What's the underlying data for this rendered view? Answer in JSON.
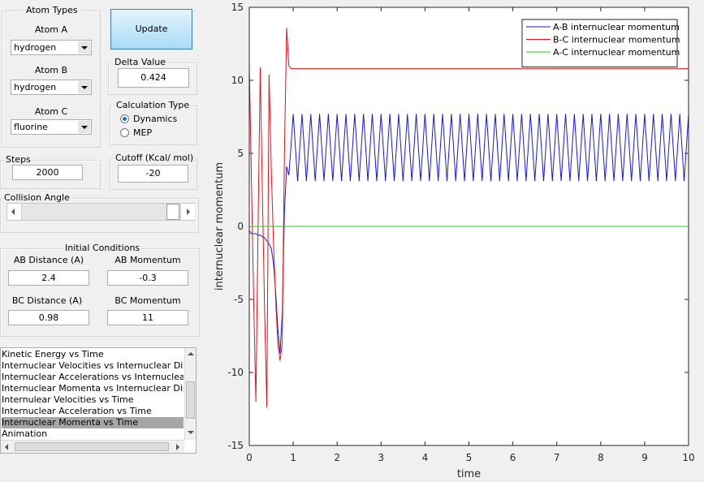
{
  "controls": {
    "atom_types": {
      "title": "Atom Types",
      "a_label": "Atom A",
      "a_value": "hydrogen",
      "b_label": "Atom B",
      "b_value": "hydrogen",
      "c_label": "Atom C",
      "c_value": "fluorine"
    },
    "update": "Update",
    "delta": {
      "title": "Delta Value",
      "value": "0.424"
    },
    "calc": {
      "title": "Calculation Type",
      "options": [
        "Dynamics",
        "MEP"
      ],
      "selected": 0
    },
    "steps": {
      "title": "Steps",
      "value": "2000"
    },
    "cutoff": {
      "title": "Cutoff (Kcal/ mol)",
      "value": "-20"
    },
    "collision": {
      "title": "Collision Angle"
    },
    "initial": {
      "title": "Initial Conditions",
      "ab_distance_label": "AB Distance (A)",
      "ab_distance": "2.4",
      "ab_momentum_label": "AB Momentum",
      "ab_momentum": "-0.3",
      "bc_distance_label": "BC Distance (A)",
      "bc_distance": "0.98",
      "bc_momentum_label": "BC Momentum",
      "bc_momentum": "11"
    },
    "list": {
      "items": [
        "Kinetic Energy vs Time",
        "Internuclear Velocities vs Internuclear Distance",
        "Internuclear Accelerations vs Internuclear Dista",
        "Internuclear Momenta vs Internuclear Distance",
        "Internulear Velocities vs Time",
        "Internuclear Acceleration vs Time",
        "Internuclear Momenta vs Time",
        "Animation"
      ],
      "selected": 6
    }
  },
  "chart_data": {
    "type": "line",
    "xlabel": "time",
    "ylabel": "internuclear momentum",
    "xlim": [
      0,
      10
    ],
    "xticks": [
      0,
      1,
      2,
      3,
      4,
      5,
      6,
      7,
      8,
      9,
      10
    ],
    "ylim": [
      -15,
      15
    ],
    "yticks": [
      -15,
      -10,
      -5,
      0,
      5,
      10,
      15
    ],
    "legend": "northeast",
    "grid": false,
    "x": [
      0,
      0.05,
      0.1,
      0.15,
      0.2,
      0.25,
      0.3,
      0.35,
      0.4,
      0.45,
      0.5,
      0.55,
      0.6,
      0.65,
      0.7,
      0.75,
      0.8,
      0.85,
      0.9,
      0.95,
      1,
      1.1,
      1.2,
      1.3,
      1.4,
      1.5,
      1.6,
      1.7,
      1.8,
      1.9,
      2,
      2.1,
      2.2,
      2.3,
      2.4,
      2.5,
      2.6,
      2.7,
      2.8,
      2.9,
      3,
      3.1,
      3.2,
      3.3,
      3.4,
      3.5,
      3.6,
      3.7,
      3.8,
      3.9,
      4,
      4.1,
      4.2,
      4.3,
      4.4,
      4.5,
      4.6,
      4.7,
      4.8,
      4.9,
      5,
      5.1,
      5.2,
      5.3,
      5.4,
      5.5,
      5.6,
      5.7,
      5.8,
      5.9,
      6,
      6.1,
      6.2,
      6.3,
      6.4,
      6.5,
      6.6,
      6.7,
      6.8,
      6.9,
      7,
      7.1,
      7.2,
      7.3,
      7.4,
      7.5,
      7.6,
      7.7,
      7.8,
      7.9,
      8,
      8.1,
      8.2,
      8.3,
      8.4,
      8.5,
      8.6,
      8.7,
      8.8,
      8.9,
      9,
      9.1,
      9.2,
      9.3,
      9.4,
      9.5,
      9.6,
      9.7,
      9.8,
      9.9,
      10
    ],
    "series": [
      {
        "name": "A-B internuclear momentum",
        "color": "#1a1acc",
        "values": [
          -0.3,
          -0.5,
          -0.5,
          -0.5,
          -0.6,
          -0.6,
          -0.7,
          -0.8,
          -1,
          -1.2,
          -1.5,
          -2.5,
          -4.5,
          -7,
          -8.7,
          -6,
          1,
          4.1,
          3.5,
          5.5,
          7.7,
          3.1,
          7.7,
          3.1,
          7.7,
          3.1,
          7.7,
          3.1,
          7.7,
          3.1,
          7.7,
          3.1,
          7.7,
          3.1,
          7.7,
          3.1,
          7.7,
          3.1,
          7.7,
          3.1,
          7.7,
          3.1,
          7.7,
          3.1,
          7.7,
          3.1,
          7.7,
          3.1,
          7.7,
          3.1,
          7.7,
          3.1,
          7.7,
          3.1,
          7.7,
          3.1,
          7.7,
          3.1,
          7.7,
          3.1,
          7.7,
          3.1,
          7.7,
          3.1,
          7.7,
          3.1,
          7.7,
          3.1,
          7.7,
          3.1,
          7.7,
          3.1,
          7.7,
          3.1,
          7.7,
          3.1,
          7.7,
          3.1,
          7.7,
          3.1,
          7.7,
          3.1,
          7.7,
          3.1,
          7.7,
          3.1,
          7.7,
          3.1,
          7.7,
          3.1,
          7.7,
          3.1,
          7.7,
          3.1,
          7.7,
          3.1,
          7.7,
          3.1,
          7.7,
          3.1,
          7.7,
          3.1,
          7.7,
          3.1,
          7.7,
          3.1,
          7.7,
          3.1,
          7.7,
          3.1,
          7.7
        ]
      },
      {
        "name": "B-C internuclear momentum",
        "color": "#e0141c",
        "values": [
          11,
          3,
          -5,
          -12,
          0,
          10.9,
          2,
          -6,
          -12.4,
          10.4,
          4,
          -1,
          -5,
          -8,
          -9.2,
          -8,
          5,
          13.6,
          11,
          10.8,
          10.8,
          10.8,
          10.8,
          10.8,
          10.8,
          10.8,
          10.8,
          10.8,
          10.8,
          10.8,
          10.8,
          10.8,
          10.8,
          10.8,
          10.8,
          10.8,
          10.8,
          10.8,
          10.8,
          10.8,
          10.8,
          10.8,
          10.8,
          10.8,
          10.8,
          10.8,
          10.8,
          10.8,
          10.8,
          10.8,
          10.8,
          10.8,
          10.8,
          10.8,
          10.8,
          10.8,
          10.8,
          10.8,
          10.8,
          10.8,
          10.8,
          10.8,
          10.8,
          10.8,
          10.8,
          10.8,
          10.8,
          10.8,
          10.8,
          10.8,
          10.8,
          10.8,
          10.8,
          10.8,
          10.8,
          10.8,
          10.8,
          10.8,
          10.8,
          10.8,
          10.8,
          10.8,
          10.8,
          10.8,
          10.8,
          10.8,
          10.8,
          10.8,
          10.8,
          10.8,
          10.8,
          10.8,
          10.8,
          10.8,
          10.8,
          10.8,
          10.8,
          10.8,
          10.8,
          10.8,
          10.8,
          10.8,
          10.8,
          10.8,
          10.8,
          10.8,
          10.8,
          10.8,
          10.8,
          10.8,
          10.8
        ]
      },
      {
        "name": "A-C internuclear momentum",
        "color": "#22c822",
        "values": [
          0,
          0,
          0,
          0,
          0,
          0,
          0,
          0,
          0,
          0,
          0,
          0,
          0,
          0,
          0,
          0,
          0,
          0,
          0,
          0,
          0,
          0,
          0,
          0,
          0,
          0,
          0,
          0,
          0,
          0,
          0,
          0,
          0,
          0,
          0,
          0,
          0,
          0,
          0,
          0,
          0,
          0,
          0,
          0,
          0,
          0,
          0,
          0,
          0,
          0,
          0,
          0,
          0,
          0,
          0,
          0,
          0,
          0,
          0,
          0,
          0,
          0,
          0,
          0,
          0,
          0,
          0,
          0,
          0,
          0,
          0,
          0,
          0,
          0,
          0,
          0,
          0,
          0,
          0,
          0,
          0,
          0,
          0,
          0,
          0,
          0,
          0,
          0,
          0,
          0,
          0,
          0,
          0,
          0,
          0,
          0,
          0,
          0,
          0,
          0,
          0,
          0,
          0,
          0,
          0,
          0,
          0,
          0,
          0,
          0,
          0
        ]
      }
    ]
  }
}
